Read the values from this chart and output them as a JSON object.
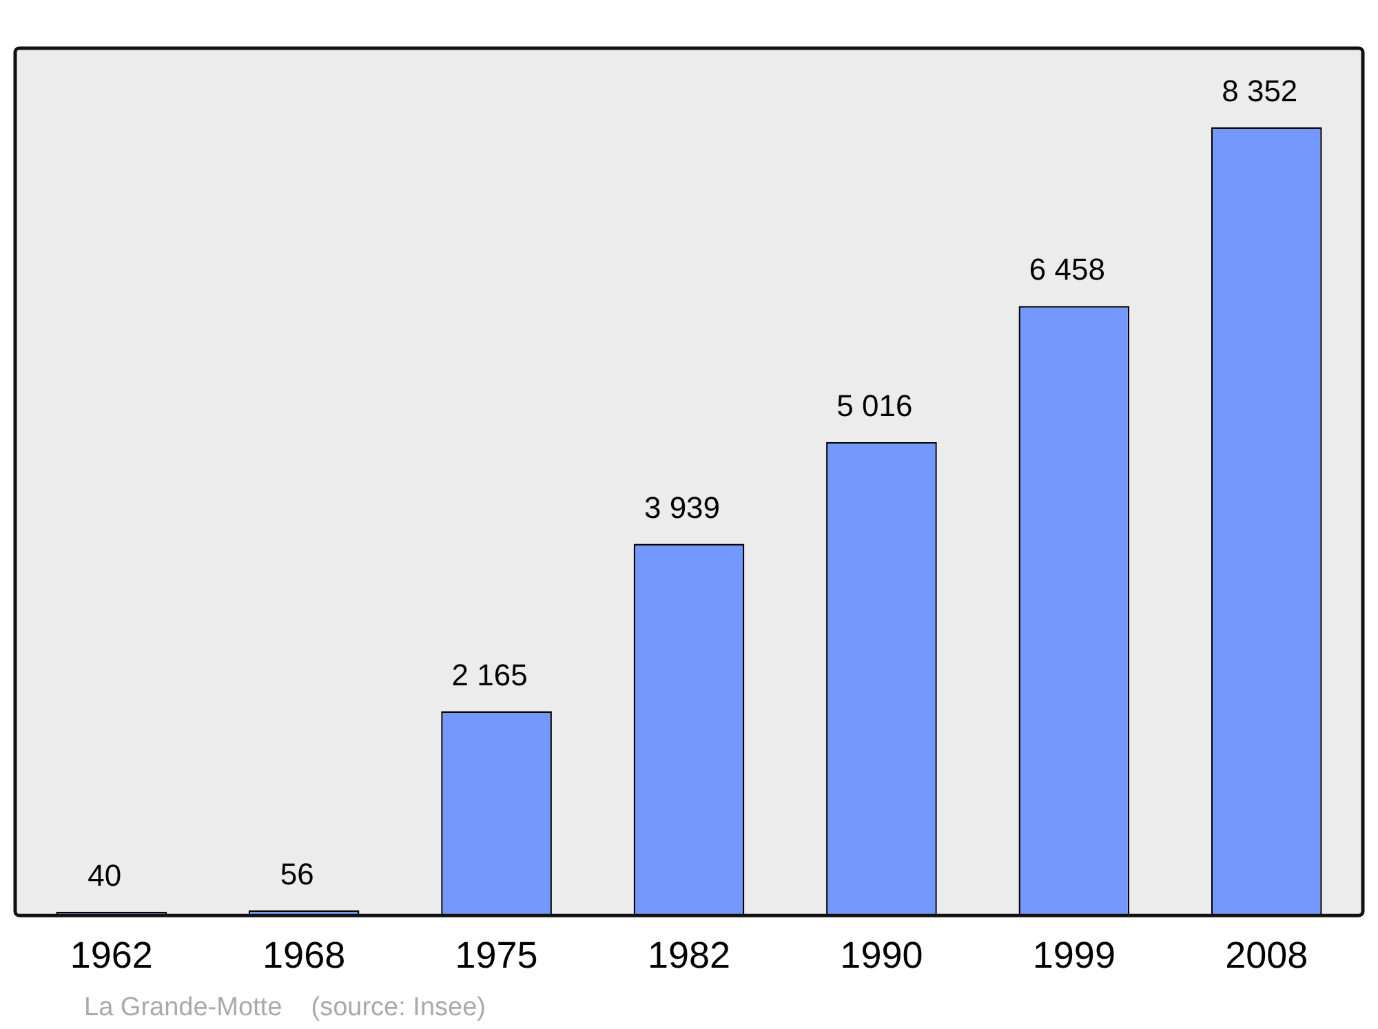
{
  "chart_data": {
    "type": "bar",
    "categories": [
      "1962",
      "1968",
      "1975",
      "1982",
      "1990",
      "1999",
      "2008"
    ],
    "values": [
      40,
      56,
      2165,
      3939,
      5016,
      6458,
      8352
    ],
    "value_labels": [
      "40",
      "56",
      "2 165",
      "3 939",
      "5 016",
      "6 458",
      "8 352"
    ],
    "color": "#7399ff",
    "ylim": [
      0,
      9190
    ],
    "tick_labels": "x",
    "annotations": [
      "La Grande-Motte    (source: Insee)"
    ]
  }
}
